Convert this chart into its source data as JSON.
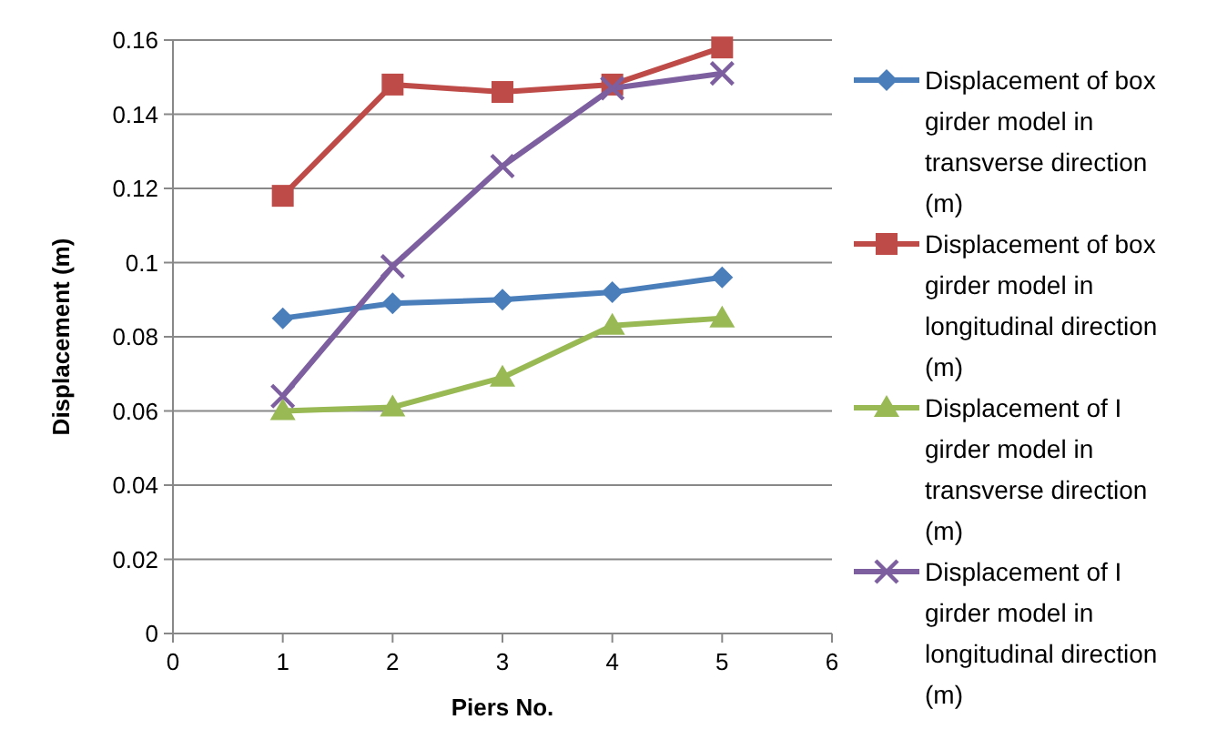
{
  "chart_data": {
    "type": "line",
    "xlabel": "Piers No.",
    "ylabel": "Displacement (m)",
    "x": [
      1,
      2,
      3,
      4,
      5
    ],
    "xlim": [
      0,
      6
    ],
    "xticks": [
      0,
      1,
      2,
      3,
      4,
      5,
      6
    ],
    "ylim": [
      0,
      0.16
    ],
    "yticks": [
      {
        "value": 0,
        "label": "0"
      },
      {
        "value": 0.02,
        "label": "0.02"
      },
      {
        "value": 0.04,
        "label": "0.04"
      },
      {
        "value": 0.06,
        "label": "0.06"
      },
      {
        "value": 0.08,
        "label": "0.08"
      },
      {
        "value": 0.1,
        "label": "0.1"
      },
      {
        "value": 0.12,
        "label": "0.12"
      },
      {
        "value": 0.14,
        "label": "0.14"
      },
      {
        "value": 0.16,
        "label": "0.16"
      }
    ],
    "grid": "y",
    "legend": "right",
    "series": [
      {
        "name": "Displacement of box girder model in transverse direction (m)",
        "color": "#4a7ebb",
        "marker": "diamond",
        "values": [
          0.085,
          0.089,
          0.09,
          0.092,
          0.096
        ]
      },
      {
        "name": "Displacement of box girder model in longitudinal direction (m)",
        "color": "#be4b48",
        "marker": "square",
        "values": [
          0.118,
          0.148,
          0.146,
          0.148,
          0.158
        ]
      },
      {
        "name": "Displacement of I girder model in transverse direction (m)",
        "color": "#98b954",
        "marker": "triangle",
        "values": [
          0.06,
          0.061,
          0.069,
          0.083,
          0.085
        ]
      },
      {
        "name": "Displacement of I girder model in longitudinal direction (m)",
        "color": "#7d5fa0",
        "marker": "cross",
        "values": [
          0.064,
          0.099,
          0.126,
          0.147,
          0.151
        ]
      }
    ]
  }
}
